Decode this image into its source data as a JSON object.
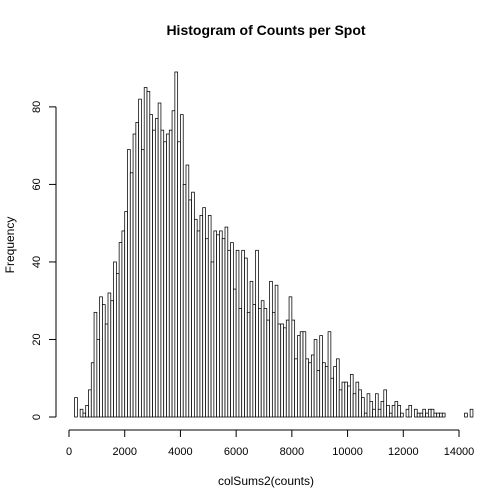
{
  "chart_data": {
    "type": "bar",
    "subtype": "histogram",
    "title": "Histogram of Counts per Spot",
    "xlabel": "colSums2(counts)",
    "ylabel": "Frequency",
    "bin_width": 100,
    "bin_start": 200,
    "xlim": [
      0,
      14000
    ],
    "ylim": [
      0,
      89
    ],
    "xticks": [
      0,
      2000,
      4000,
      6000,
      8000,
      10000,
      12000,
      14000
    ],
    "yticks": [
      0,
      20,
      40,
      60,
      80
    ],
    "grid": false,
    "legend": "none",
    "bar_fill": "#ffffff",
    "bar_stroke": "#000000",
    "values": [
      5,
      0,
      2,
      1,
      3,
      7,
      14,
      27,
      20,
      31,
      29,
      24,
      32,
      30,
      40,
      37,
      45,
      48,
      53,
      69,
      63,
      73,
      76,
      82,
      69,
      85,
      84,
      78,
      74,
      77,
      81,
      74,
      71,
      73,
      74,
      79,
      89,
      71,
      78,
      60,
      65,
      56,
      58,
      51,
      48,
      52,
      54,
      46,
      52,
      40,
      48,
      47,
      48,
      46,
      49,
      43,
      45,
      33,
      43,
      28,
      43,
      41,
      27,
      35,
      29,
      43,
      28,
      30,
      28,
      25,
      35,
      27,
      34,
      24,
      24,
      23,
      25,
      31,
      25,
      15,
      21,
      22,
      22,
      15,
      14,
      16,
      20,
      12,
      21,
      14,
      13,
      22,
      10,
      13,
      15,
      7,
      9,
      9,
      8,
      11,
      6,
      9,
      7,
      5,
      1,
      6,
      4,
      2,
      6,
      2,
      4,
      7,
      3,
      1,
      3,
      4,
      3,
      1,
      0,
      2,
      3,
      0,
      2,
      1,
      1,
      2,
      1,
      2,
      2,
      1,
      1,
      1,
      1,
      0,
      0,
      0,
      0,
      0,
      0,
      0,
      1,
      0,
      2
    ]
  }
}
